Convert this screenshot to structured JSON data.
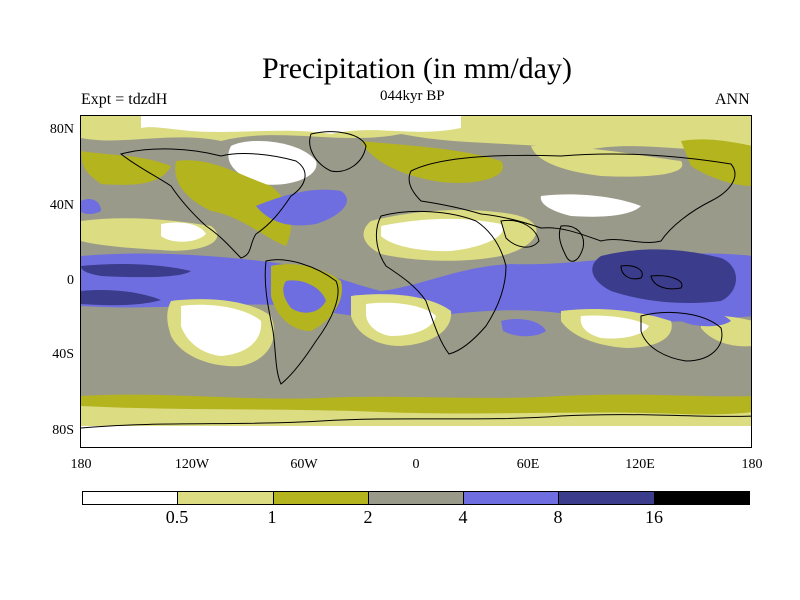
{
  "title": "Precipitation (in mm/day)",
  "left_label": "Expt = tdzdH",
  "center_label": "044kyr BP",
  "right_label": "ANN",
  "y_axis_labels": [
    "80N",
    "40N",
    "0",
    "40S",
    "80S"
  ],
  "x_axis_labels": [
    "180",
    "120W",
    "60W",
    "0",
    "60E",
    "120E",
    "180"
  ],
  "legend": {
    "labels": [
      "0.5",
      "1",
      "2",
      "4",
      "8",
      "16"
    ],
    "colors": [
      "#ffffff",
      "#dcdc82",
      "#b4b41e",
      "#9a9a8a",
      "#6e6ee0",
      "#3c3c8c",
      "#000000"
    ]
  },
  "map": {
    "ocean_base_color": "#9a9a8a",
    "polar_color": "#ffffff"
  }
}
